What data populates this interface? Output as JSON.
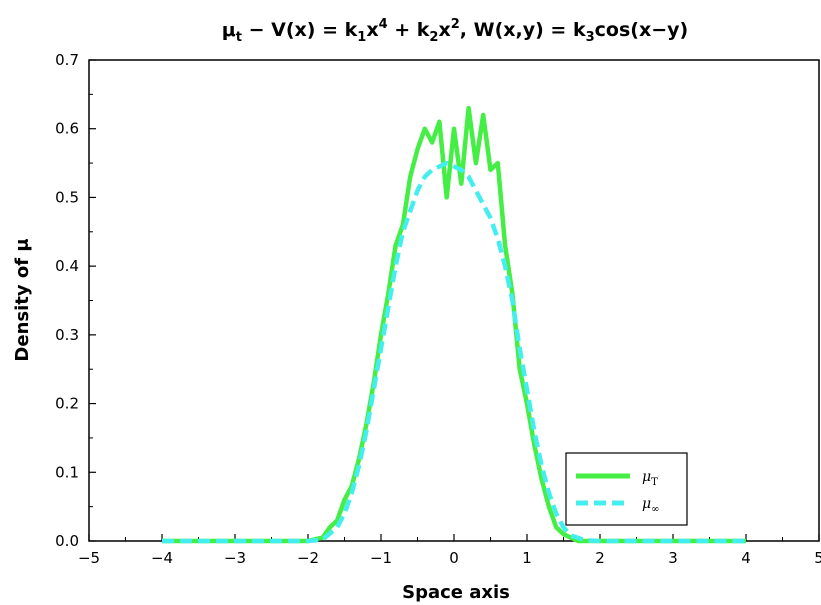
{
  "chart_data": {
    "type": "line",
    "title": "μt − V(x) = k1x4 + k2x2, W(x,y) = k3cos(x−y)",
    "title_parts": {
      "mu": "μ",
      "mu_sub": "t",
      "p1": " − V(x) = k",
      "k1_sub": "1",
      "p2": "x",
      "sup4": "4",
      "p3": " + k",
      "k2_sub": "2",
      "p4": "x",
      "sup2": "2",
      "p5": ", W(x,y) = k",
      "k3_sub": "3",
      "p6": "cos(x−y)"
    },
    "xlabel": "Space axis",
    "ylabel": "Density of μ",
    "xlim": [
      -5,
      5
    ],
    "ylim": [
      0,
      0.7
    ],
    "xticks": [
      -5,
      -4,
      -3,
      -2,
      -1,
      0,
      1,
      2,
      3,
      4,
      5
    ],
    "xtick_labels": [
      "−5",
      "−4",
      "−3",
      "−2",
      "−1",
      "0",
      "1",
      "2",
      "3",
      "4",
      "5"
    ],
    "yticks": [
      0,
      0.1,
      0.2,
      0.3,
      0.4,
      0.5,
      0.6,
      0.7
    ],
    "ytick_labels": [
      "0.0",
      "0.1",
      "0.2",
      "0.3",
      "0.4",
      "0.5",
      "0.6",
      "0.7"
    ],
    "grid": false,
    "legend_position": "bottom-right",
    "series": [
      {
        "name": "μT",
        "name_base": "μ",
        "name_sub": "T",
        "color": "#44ee44",
        "style": "solid",
        "x": [
          -4.0,
          -2.0,
          -1.8,
          -1.7,
          -1.6,
          -1.5,
          -1.4,
          -1.3,
          -1.2,
          -1.1,
          -1.0,
          -0.9,
          -0.8,
          -0.7,
          -0.6,
          -0.5,
          -0.4,
          -0.3,
          -0.2,
          -0.1,
          0.0,
          0.1,
          0.2,
          0.3,
          0.4,
          0.5,
          0.6,
          0.7,
          0.8,
          0.9,
          1.0,
          1.1,
          1.2,
          1.3,
          1.4,
          1.5,
          1.6,
          1.7,
          2.0,
          4.0
        ],
        "y": [
          0.0,
          0.0,
          0.005,
          0.02,
          0.03,
          0.06,
          0.08,
          0.12,
          0.17,
          0.23,
          0.3,
          0.36,
          0.43,
          0.46,
          0.53,
          0.57,
          0.6,
          0.58,
          0.61,
          0.5,
          0.6,
          0.52,
          0.63,
          0.55,
          0.62,
          0.54,
          0.55,
          0.43,
          0.36,
          0.25,
          0.2,
          0.14,
          0.09,
          0.05,
          0.02,
          0.01,
          0.005,
          0.0,
          0.0,
          0.0
        ]
      },
      {
        "name": "μ∞",
        "name_base": "μ",
        "name_sub": "∞",
        "color": "#44eeee",
        "style": "dashed",
        "x": [
          -4.0,
          -2.0,
          -1.8,
          -1.6,
          -1.5,
          -1.4,
          -1.3,
          -1.2,
          -1.1,
          -1.0,
          -0.9,
          -0.8,
          -0.7,
          -0.6,
          -0.5,
          -0.4,
          -0.3,
          -0.2,
          -0.1,
          0.0,
          0.1,
          0.2,
          0.3,
          0.4,
          0.5,
          0.6,
          0.7,
          0.8,
          0.9,
          1.0,
          1.1,
          1.2,
          1.3,
          1.4,
          1.5,
          1.6,
          1.8,
          2.0,
          4.0
        ],
        "y": [
          0.0,
          0.0,
          0.002,
          0.02,
          0.04,
          0.07,
          0.11,
          0.16,
          0.22,
          0.28,
          0.34,
          0.4,
          0.45,
          0.48,
          0.51,
          0.53,
          0.54,
          0.545,
          0.55,
          0.545,
          0.54,
          0.53,
          0.51,
          0.49,
          0.47,
          0.44,
          0.4,
          0.35,
          0.28,
          0.22,
          0.16,
          0.11,
          0.07,
          0.04,
          0.02,
          0.008,
          0.001,
          0.0,
          0.0
        ]
      }
    ]
  }
}
